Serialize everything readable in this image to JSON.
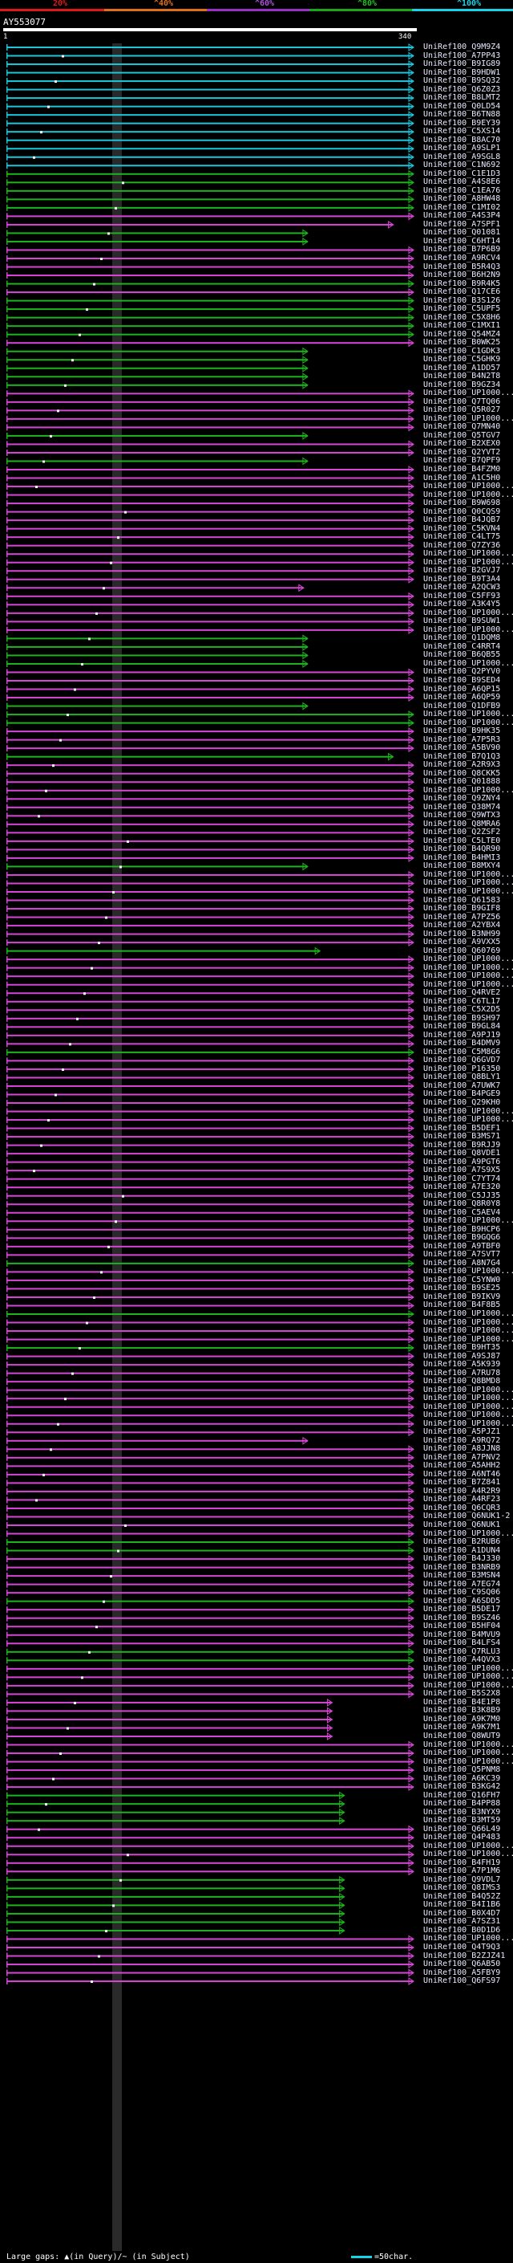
{
  "scale": {
    "labels": [
      "20%",
      "^40%",
      "^60%",
      "^80%",
      "^100%"
    ],
    "colors": [
      "#e01818",
      "#e07018",
      "#9a30c8",
      "#1aa81a",
      "#17d3e8"
    ]
  },
  "query": {
    "name": "AY553077",
    "start": "1",
    "end": "340"
  },
  "hit_colors": {
    "cyan": "#1bc6dc",
    "green": "#1db31d",
    "magenta": "#d646d6"
  },
  "hits": [
    [
      "UniRef100_Q9M9Z4",
      "c",
      1
    ],
    [
      "UniRef100_A7PP43",
      "c",
      1
    ],
    [
      "UniRef100_B9IG89",
      "c",
      1
    ],
    [
      "UniRef100_B9HDW1",
      "c",
      1
    ],
    [
      "UniRef100_B9SQ32",
      "c",
      1
    ],
    [
      "UniRef100_Q6Z0Z3",
      "c",
      1
    ],
    [
      "UniRef100_B8LMT2",
      "c",
      1
    ],
    [
      "UniRef100_Q0LD54",
      "c",
      1
    ],
    [
      "UniRef100_B6TN88",
      "c",
      1
    ],
    [
      "UniRef100_B9EY39",
      "c",
      1
    ],
    [
      "UniRef100_C5XS14",
      "c",
      1
    ],
    [
      "UniRef100_B8AC70",
      "c",
      1
    ],
    [
      "UniRef100_A9SLP1",
      "c",
      1
    ],
    [
      "UniRef100_A9SGL8",
      "c",
      1
    ],
    [
      "UniRef100_C1N692",
      "c",
      1
    ],
    [
      "UniRef100_C1E1D3",
      "g",
      1
    ],
    [
      "UniRef100_A4S8E6",
      "g",
      1
    ],
    [
      "UniRef100_C1EA76",
      "g",
      1
    ],
    [
      "UniRef100_A8HW48",
      "g",
      1
    ],
    [
      "UniRef100_C1MI02",
      "g",
      1
    ],
    [
      "UniRef100_A4S3P4",
      "m",
      1
    ],
    [
      "UniRef100_A7SPF1",
      "m",
      0.95
    ],
    [
      "UniRef100_Q01081",
      "g",
      0.74
    ],
    [
      "UniRef100_C6HT14",
      "g",
      0.74
    ],
    [
      "UniRef100_B7P6B9",
      "m",
      1
    ],
    [
      "UniRef100_A9RCV4",
      "m",
      1
    ],
    [
      "UniRef100_B5R4Q3",
      "m",
      1
    ],
    [
      "UniRef100_B6H2N9",
      "m",
      1
    ],
    [
      "UniRef100_B9R4K5",
      "g",
      1
    ],
    [
      "UniRef100_Q17CE6",
      "m",
      1
    ],
    [
      "UniRef100_B3S126",
      "g",
      1
    ],
    [
      "UniRef100_C5UPF5",
      "g",
      1
    ],
    [
      "UniRef100_C5X8H6",
      "g",
      1
    ],
    [
      "UniRef100_C1MXI1",
      "g",
      1
    ],
    [
      "UniRef100_Q54MZ4",
      "g",
      1
    ],
    [
      "UniRef100_B0WK25",
      "m",
      1
    ],
    [
      "UniRef100_C1GDK3",
      "g",
      0.74
    ],
    [
      "UniRef100_C5GHK9",
      "g",
      0.74
    ],
    [
      "UniRef100_A1DD57",
      "g",
      0.74
    ],
    [
      "UniRef100_B4N2T8",
      "g",
      0.74
    ],
    [
      "UniRef100_B9GZ34",
      "g",
      0.74
    ],
    [
      "UniRef100_UP1000...",
      "m",
      1
    ],
    [
      "UniRef100_Q7TQ06",
      "m",
      1
    ],
    [
      "UniRef100_Q5R027",
      "m",
      1
    ],
    [
      "UniRef100_UP1000...",
      "m",
      1
    ],
    [
      "UniRef100_Q7MN40",
      "m",
      1
    ],
    [
      "UniRef100_Q5TGV7",
      "g",
      0.74
    ],
    [
      "UniRef100_B2XEX0",
      "m",
      1
    ],
    [
      "UniRef100_Q2YVT2",
      "m",
      1
    ],
    [
      "UniRef100_B7QPF9",
      "g",
      0.74
    ],
    [
      "UniRef100_B4FZM0",
      "m",
      1
    ],
    [
      "UniRef100_A1C5H0",
      "m",
      1
    ],
    [
      "UniRef100_UP1000...",
      "m",
      1
    ],
    [
      "UniRef100_UP1000...",
      "m",
      1
    ],
    [
      "UniRef100_B9W698",
      "m",
      1
    ],
    [
      "UniRef100_Q0CQS9",
      "m",
      1
    ],
    [
      "UniRef100_B4JQB7",
      "m",
      1
    ],
    [
      "UniRef100_C5KVN4",
      "m",
      1
    ],
    [
      "UniRef100_C4LT75",
      "m",
      1
    ],
    [
      "UniRef100_Q7ZY36",
      "m",
      1
    ],
    [
      "UniRef100_UP1000...",
      "m",
      1
    ],
    [
      "UniRef100_UP1000...",
      "m",
      1
    ],
    [
      "UniRef100_B2GVJ7",
      "m",
      1
    ],
    [
      "UniRef100_B9T3A4",
      "m",
      1
    ],
    [
      "UniRef100_A2QCW3",
      "m",
      0.73
    ],
    [
      "UniRef100_C5FF93",
      "m",
      1
    ],
    [
      "UniRef100_A3K4Y5",
      "m",
      1
    ],
    [
      "UniRef100_UP1000...",
      "m",
      1
    ],
    [
      "UniRef100_B9SUW1",
      "m",
      1
    ],
    [
      "UniRef100_UP1000...",
      "m",
      1
    ],
    [
      "UniRef100_Q1DQM8",
      "g",
      0.74
    ],
    [
      "UniRef100_C4RRT4",
      "g",
      0.74
    ],
    [
      "UniRef100_B6QB55",
      "g",
      0.74
    ],
    [
      "UniRef100_UP1000...",
      "g",
      0.74
    ],
    [
      "UniRef100_Q2PYV0",
      "m",
      1
    ],
    [
      "UniRef100_B9SED4",
      "m",
      1
    ],
    [
      "UniRef100_A6QP15",
      "m",
      1
    ],
    [
      "UniRef100_A6QP59",
      "m",
      1
    ],
    [
      "UniRef100_Q1DFB9",
      "g",
      0.74
    ],
    [
      "UniRef100_UP1000...",
      "g",
      1
    ],
    [
      "UniRef100_UP1000...",
      "g",
      1
    ],
    [
      "UniRef100_B9HK35",
      "m",
      1
    ],
    [
      "UniRef100_A7P5R3",
      "m",
      1
    ],
    [
      "UniRef100_A5BV90",
      "m",
      1
    ],
    [
      "UniRef100_B7Q1Q3",
      "g",
      0.95
    ],
    [
      "UniRef100_A2R9X3",
      "m",
      1
    ],
    [
      "UniRef100_Q8CKK5",
      "m",
      1
    ],
    [
      "UniRef100_Q01888",
      "m",
      1
    ],
    [
      "UniRef100_UP1000...",
      "m",
      1
    ],
    [
      "UniRef100_Q9ZNY4",
      "m",
      1
    ],
    [
      "UniRef100_Q38M74",
      "m",
      1
    ],
    [
      "UniRef100_Q9WTX3",
      "m",
      1
    ],
    [
      "UniRef100_Q8MRA6",
      "m",
      1
    ],
    [
      "UniRef100_Q2ZSF2",
      "m",
      1
    ],
    [
      "UniRef100_C5LTE0",
      "m",
      1
    ],
    [
      "UniRef100_B4QR90",
      "m",
      1
    ],
    [
      "UniRef100_B4HMI3",
      "m",
      1
    ],
    [
      "UniRef100_B8MXY4",
      "g",
      0.74
    ],
    [
      "UniRef100_UP1000...",
      "m",
      1
    ],
    [
      "UniRef100_UP1000...",
      "m",
      1
    ],
    [
      "UniRef100_UP1000...",
      "m",
      1
    ],
    [
      "UniRef100_Q61583",
      "m",
      1
    ],
    [
      "UniRef100_B9GIF8",
      "m",
      1
    ],
    [
      "UniRef100_A7PZ56",
      "m",
      1
    ],
    [
      "UniRef100_A2YBX4",
      "m",
      1
    ],
    [
      "UniRef100_B3NH99",
      "m",
      1
    ],
    [
      "UniRef100_A9VXX5",
      "m",
      1
    ],
    [
      "UniRef100_Q60769",
      "g",
      0.77
    ],
    [
      "UniRef100_UP1000...",
      "m",
      1
    ],
    [
      "UniRef100_UP1000...",
      "m",
      1
    ],
    [
      "UniRef100_UP1000...",
      "m",
      1
    ],
    [
      "UniRef100_UP1000...",
      "m",
      1
    ],
    [
      "UniRef100_Q4RVE2",
      "m",
      1
    ],
    [
      "UniRef100_C6TL17",
      "m",
      1
    ],
    [
      "UniRef100_C5X2D5",
      "m",
      1
    ],
    [
      "UniRef100_B9SH97",
      "m",
      1
    ],
    [
      "UniRef100_B9GL84",
      "m",
      1
    ],
    [
      "UniRef100_A9PJ19",
      "m",
      1
    ],
    [
      "UniRef100_B4DMV9",
      "m",
      1
    ],
    [
      "UniRef100_C5M8G6",
      "g",
      1
    ],
    [
      "UniRef100_Q6GVD7",
      "m",
      1
    ],
    [
      "UniRef100_P16350",
      "m",
      1
    ],
    [
      "UniRef100_Q8BLY1",
      "m",
      1
    ],
    [
      "UniRef100_A7UWK7",
      "m",
      1
    ],
    [
      "UniRef100_B4PGE9",
      "m",
      1
    ],
    [
      "UniRef100_Q29KH0",
      "m",
      1
    ],
    [
      "UniRef100_UP1000...",
      "m",
      1
    ],
    [
      "UniRef100_UP1000...",
      "m",
      1
    ],
    [
      "UniRef100_B5DEF1",
      "m",
      1
    ],
    [
      "UniRef100_B3MS71",
      "m",
      1
    ],
    [
      "UniRef100_B9RJJ9",
      "m",
      1
    ],
    [
      "UniRef100_Q8VDE1",
      "m",
      1
    ],
    [
      "UniRef100_A9PGT6",
      "m",
      1
    ],
    [
      "UniRef100_A7S9X5",
      "m",
      1
    ],
    [
      "UniRef100_C7YT74",
      "m",
      1
    ],
    [
      "UniRef100_A7E320",
      "m",
      1
    ],
    [
      "UniRef100_C5JJ35",
      "m",
      1
    ],
    [
      "UniRef100_Q8R0Y8",
      "m",
      1
    ],
    [
      "UniRef100_C5AEV4",
      "m",
      1
    ],
    [
      "UniRef100_UP1000...",
      "m",
      1
    ],
    [
      "UniRef100_B9HCP6",
      "m",
      1
    ],
    [
      "UniRef100_B9GQG6",
      "m",
      1
    ],
    [
      "UniRef100_A9TBF0",
      "m",
      1
    ],
    [
      "UniRef100_A7SVT7",
      "m",
      1
    ],
    [
      "UniRef100_A8N7G4",
      "g",
      1
    ],
    [
      "UniRef100_UP1000...",
      "m",
      1
    ],
    [
      "UniRef100_C5YNW0",
      "m",
      1
    ],
    [
      "UniRef100_B9SE25",
      "m",
      1
    ],
    [
      "UniRef100_B9IKV9",
      "m",
      1
    ],
    [
      "UniRef100_B4F8B5",
      "m",
      1
    ],
    [
      "UniRef100_UP1000...",
      "g",
      1
    ],
    [
      "UniRef100_UP1000...",
      "m",
      1
    ],
    [
      "UniRef100_UP1000...",
      "m",
      1
    ],
    [
      "UniRef100_UP1000...",
      "m",
      1
    ],
    [
      "UniRef100_B9HT35",
      "g",
      1
    ],
    [
      "UniRef100_A9SJ87",
      "m",
      1
    ],
    [
      "UniRef100_A5K939",
      "m",
      1
    ],
    [
      "UniRef100_A7RU78",
      "m",
      1
    ],
    [
      "UniRef100_Q8BMD8",
      "m",
      1
    ],
    [
      "UniRef100_UP1000...",
      "m",
      1
    ],
    [
      "UniRef100_UP1000...",
      "m",
      1
    ],
    [
      "UniRef100_UP1000...",
      "m",
      1
    ],
    [
      "UniRef100_UP1000...",
      "m",
      1
    ],
    [
      "UniRef100_UP1000...",
      "m",
      1
    ],
    [
      "UniRef100_A5PJZ1",
      "m",
      1
    ],
    [
      "UniRef100_A9RQ72",
      "m",
      0.74
    ],
    [
      "UniRef100_A8JJN8",
      "m",
      1
    ],
    [
      "UniRef100_A7PNV2",
      "m",
      1
    ],
    [
      "UniRef100_A5AHH2",
      "m",
      1
    ],
    [
      "UniRef100_A6NT46",
      "m",
      1
    ],
    [
      "UniRef100_B7Z841",
      "m",
      1
    ],
    [
      "UniRef100_A4R2R9",
      "m",
      1
    ],
    [
      "UniRef100_A4RF23",
      "m",
      1
    ],
    [
      "UniRef100_Q6CQR3",
      "m",
      1
    ],
    [
      "UniRef100_Q6NUK1-2",
      "m",
      1
    ],
    [
      "UniRef100_Q6NUK1",
      "m",
      1
    ],
    [
      "UniRef100_UP1000...",
      "m",
      1
    ],
    [
      "UniRef100_B2RUB6",
      "g",
      1
    ],
    [
      "UniRef100_A1DUN4",
      "g",
      1
    ],
    [
      "UniRef100_B4J330",
      "m",
      1
    ],
    [
      "UniRef100_B3NRB9",
      "m",
      1
    ],
    [
      "UniRef100_B3MSN4",
      "m",
      1
    ],
    [
      "UniRef100_A7EG74",
      "m",
      1
    ],
    [
      "UniRef100_C9SQ06",
      "m",
      1
    ],
    [
      "UniRef100_A6SDD5",
      "g",
      1
    ],
    [
      "UniRef100_B5DE17",
      "m",
      1
    ],
    [
      "UniRef100_B9SZ46",
      "m",
      1
    ],
    [
      "UniRef100_B5HF04",
      "m",
      1
    ],
    [
      "UniRef100_B4MVU9",
      "m",
      1
    ],
    [
      "UniRef100_B4LFS4",
      "m",
      1
    ],
    [
      "UniRef100_Q7RLU3",
      "g",
      1
    ],
    [
      "UniRef100_A4QVX3",
      "g",
      1
    ],
    [
      "UniRef100_UP1000...",
      "m",
      1
    ],
    [
      "UniRef100_UP1000...",
      "m",
      1
    ],
    [
      "UniRef100_UP1000...",
      "m",
      1
    ],
    [
      "UniRef100_B5S2X8",
      "m",
      1
    ],
    [
      "UniRef100_B4E1P8",
      "m",
      0.8
    ],
    [
      "UniRef100_B3K8B9",
      "m",
      0.8
    ],
    [
      "UniRef100_A9K7M0",
      "m",
      0.8
    ],
    [
      "UniRef100_A9K7M1",
      "m",
      0.8
    ],
    [
      "UniRef100_Q8WUT9",
      "m",
      0.8
    ],
    [
      "UniRef100_UP1000...",
      "m",
      1
    ],
    [
      "UniRef100_UP1000...",
      "m",
      1
    ],
    [
      "UniRef100_UP1000...",
      "m",
      1
    ],
    [
      "UniRef100_Q5PNM8",
      "m",
      1
    ],
    [
      "UniRef100_A6KC39",
      "m",
      1
    ],
    [
      "UniRef100_B3KG42",
      "m",
      1
    ],
    [
      "UniRef100_Q16FH7",
      "g",
      0.83
    ],
    [
      "UniRef100_B4PP88",
      "g",
      0.83
    ],
    [
      "UniRef100_B3NYX9",
      "g",
      0.83
    ],
    [
      "UniRef100_B3MT59",
      "g",
      0.83
    ],
    [
      "UniRef100_Q66L49",
      "m",
      1
    ],
    [
      "UniRef100_Q4P483",
      "m",
      1
    ],
    [
      "UniRef100_UP1000...",
      "m",
      1
    ],
    [
      "UniRef100_UP1000...",
      "m",
      1
    ],
    [
      "UniRef100_B4FH19",
      "m",
      1
    ],
    [
      "UniRef100_A7P1M6",
      "m",
      1
    ],
    [
      "UniRef100_Q9VDL7",
      "g",
      0.83
    ],
    [
      "UniRef100_Q8IMS3",
      "g",
      0.83
    ],
    [
      "UniRef100_B4Q52Z",
      "g",
      0.83
    ],
    [
      "UniRef100_B4I1B6",
      "g",
      0.83
    ],
    [
      "UniRef100_B0X4D7",
      "g",
      0.83
    ],
    [
      "UniRef100_A7SZ31",
      "g",
      0.83
    ],
    [
      "UniRef100_B0D1D6",
      "g",
      0.83
    ],
    [
      "UniRef100_UP1000...",
      "m",
      1
    ],
    [
      "UniRef100_Q4T9Q3",
      "m",
      1
    ],
    [
      "UniRef100_B2ZJZ41",
      "m",
      1
    ],
    [
      "UniRef100_Q6AB50",
      "m",
      1
    ],
    [
      "UniRef100_A5FBY9",
      "m",
      1
    ],
    [
      "UniRef100_Q6FS97",
      "m",
      1
    ]
  ],
  "footer": {
    "text": "Large gaps: ▲(in Query)/~ (in Subject)"
  },
  "legend": {
    "label": "=50char."
  }
}
